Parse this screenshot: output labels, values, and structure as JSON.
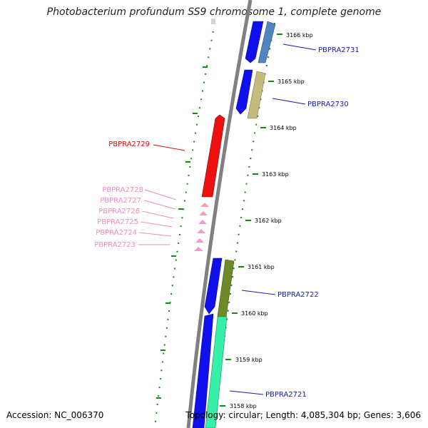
{
  "title": "Photobacterium profundum SS9 chromosome 1, complete genome",
  "footer": {
    "accession": "Accession: NC_006370",
    "summary": "Topology: circular; Length: 4,085,304 bp; Genes: 3,606"
  },
  "colors": {
    "backbone": "#808080",
    "tick_marks": "#138a13",
    "blue_gene": "#1010ee",
    "red_gene": "#ee1010",
    "pink_gene": "#f49ac8",
    "steelblue_gene": "#4f86c0",
    "khaki_gene": "#c4bc7a",
    "olive_gene": "#6e8a28",
    "mint_gene": "#36f0a8",
    "label_blue": "#1a1ab0",
    "label_red": "#d11010",
    "label_pink": "#f08cbc"
  },
  "ticks": [
    "3166 kbp",
    "3165 kbp",
    "3164 kbp",
    "3163 kbp",
    "3162 kbp",
    "3161 kbp",
    "3160 kbp",
    "3159 kbp",
    "3158 kbp"
  ],
  "genes": [
    {
      "label": "PBPRA2731",
      "color": "steelblue_gene",
      "label_color": "label_blue"
    },
    {
      "label": "PBPRA2730",
      "color": "khaki_gene",
      "label_color": "label_blue"
    },
    {
      "label": "PBPRA2729",
      "color": "red_gene",
      "label_color": "label_red"
    },
    {
      "label": "PBPRA2728",
      "color": "pink_gene",
      "label_color": "label_pink"
    },
    {
      "label": "PBPRA2727",
      "color": "pink_gene",
      "label_color": "label_pink"
    },
    {
      "label": "PBPRA2726",
      "color": "pink_gene",
      "label_color": "label_pink"
    },
    {
      "label": "PBPRA2725",
      "color": "pink_gene",
      "label_color": "label_pink"
    },
    {
      "label": "PBPRA2724",
      "color": "pink_gene",
      "label_color": "label_pink"
    },
    {
      "label": "PBPRA2723",
      "color": "pink_gene",
      "label_color": "label_pink"
    },
    {
      "label": "PBPRA2722",
      "color": "olive_gene",
      "label_color": "label_blue"
    },
    {
      "label": "PBPRA2721",
      "color": "mint_gene",
      "label_color": "label_blue"
    }
  ]
}
